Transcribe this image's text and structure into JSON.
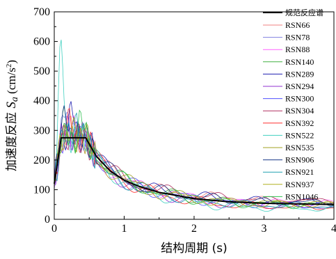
{
  "chart_data": {
    "type": "line",
    "xlabel": "结构周期 (s)",
    "ylabel": {
      "prefix": "加速度反应 ",
      "symbol": "S",
      "subscript": "a",
      "unit_open": " (cm/s",
      "unit_sup": "2",
      "unit_close": ")"
    },
    "xlim": [
      0,
      4
    ],
    "ylim": [
      0,
      700
    ],
    "x_ticks": [
      0,
      1,
      2,
      3,
      4
    ],
    "y_ticks": [
      0,
      100,
      200,
      300,
      400,
      500,
      600,
      700
    ],
    "grid": false,
    "legend_position": "top-right",
    "design_spectrum": {
      "name": "规范反应谱",
      "color": "#000000",
      "x": [
        0,
        0.1,
        0.45,
        0.6,
        0.8,
        1.0,
        1.2,
        1.5,
        2.0,
        2.5,
        3.0,
        3.5,
        4.0
      ],
      "y": [
        120,
        275,
        275,
        213,
        163,
        132,
        112,
        91,
        70,
        59,
        54,
        52,
        50
      ]
    },
    "series": [
      {
        "name": "RSN66",
        "color": "#f08080",
        "peak": 330,
        "peak_t": 0.22,
        "tail": 60
      },
      {
        "name": "RSN78",
        "color": "#8080e0",
        "peak": 360,
        "peak_t": 0.15,
        "tail": 45
      },
      {
        "name": "RSN88",
        "color": "#ff60ff",
        "peak": 300,
        "peak_t": 0.3,
        "tail": 55
      },
      {
        "name": "RSN140",
        "color": "#40b040",
        "peak": 340,
        "peak_t": 0.12,
        "tail": 50
      },
      {
        "name": "RSN289",
        "color": "#2020b0",
        "peak": 370,
        "peak_t": 0.25,
        "tail": 58
      },
      {
        "name": "RSN294",
        "color": "#9030d0",
        "peak": 320,
        "peak_t": 0.18,
        "tail": 42
      },
      {
        "name": "RSN300",
        "color": "#5050ff",
        "peak": 310,
        "peak_t": 0.35,
        "tail": 48
      },
      {
        "name": "RSN304",
        "color": "#b03060",
        "peak": 290,
        "peak_t": 0.28,
        "tail": 62
      },
      {
        "name": "RSN392",
        "color": "#ff3030",
        "peak": 330,
        "peak_t": 0.2,
        "tail": 40
      },
      {
        "name": "RSN522",
        "color": "#40d0c0",
        "peak": 575,
        "peak_t": 0.1,
        "tail": 35
      },
      {
        "name": "RSN535",
        "color": "#a0a020",
        "peak": 300,
        "peak_t": 0.4,
        "tail": 52
      },
      {
        "name": "RSN906",
        "color": "#1a3a8a",
        "peak": 380,
        "peak_t": 0.16,
        "tail": 56
      },
      {
        "name": "RSN921",
        "color": "#20a0b0",
        "peak": 350,
        "peak_t": 0.32,
        "tail": 44
      },
      {
        "name": "RSN937",
        "color": "#b0b020",
        "peak": 310,
        "peak_t": 0.24,
        "tail": 50
      },
      {
        "name": "RSN1046",
        "color": "#30c050",
        "peak": 345,
        "peak_t": 0.38,
        "tail": 46
      }
    ]
  }
}
